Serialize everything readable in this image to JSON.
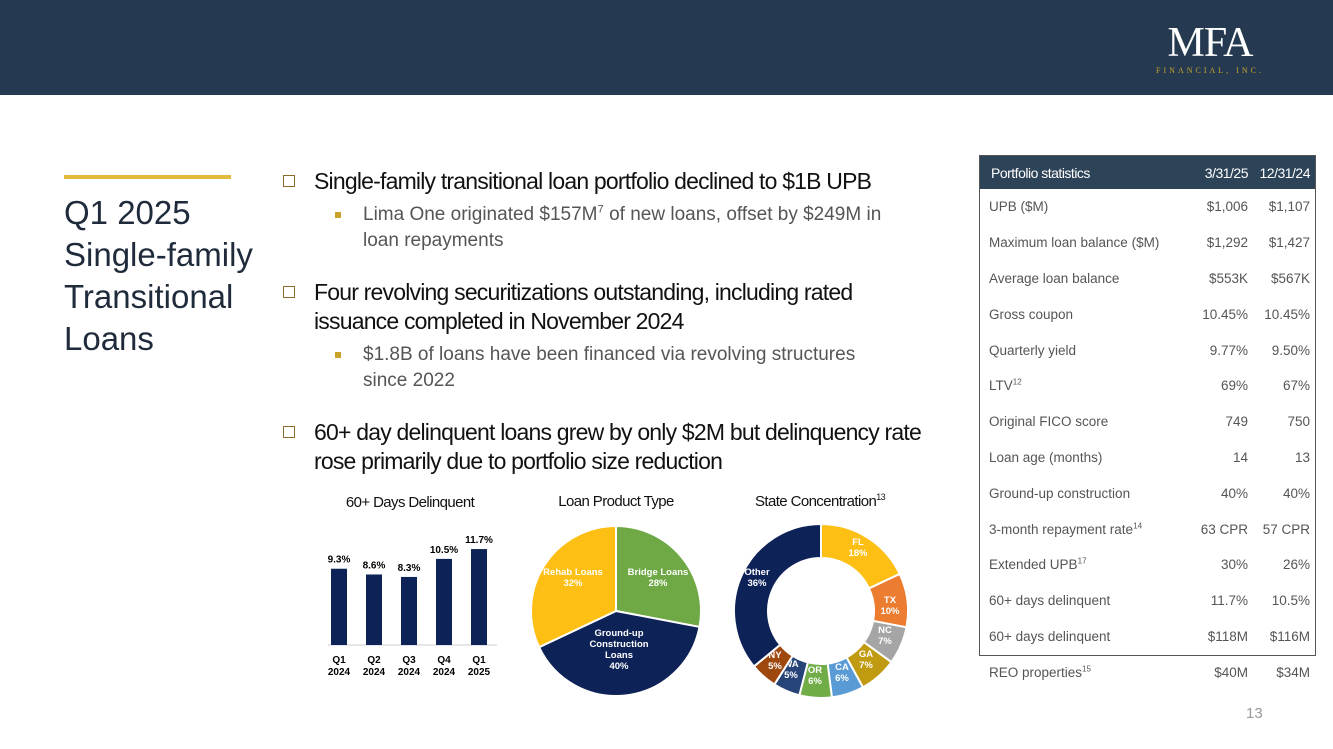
{
  "logo": {
    "name": "MFA",
    "sub": "FINANCIAL, INC."
  },
  "title": "Q1 2025 Single-family Transitional Loans",
  "bullets": [
    {
      "text": "Single-family transitional loan portfolio declined to $1B UPB",
      "subs": [
        {
          "pre": "Lima One originated $157M",
          "sup": "7",
          "post": " of new loans, offset by $249M in loan repayments"
        }
      ]
    },
    {
      "text": "Four revolving securitizations outstanding, including rated issuance completed in November 2024",
      "subs": [
        {
          "pre": "$1.8B of loans have been financed via revolving structures since 2022",
          "sup": "",
          "post": ""
        }
      ]
    },
    {
      "text": "60+ day delinquent loans grew by only $2M but delinquency rate rose primarily due to portfolio size reduction",
      "subs": []
    }
  ],
  "table": {
    "headers": [
      "Portfolio statistics",
      "3/31/25",
      "12/31/24"
    ],
    "rows": [
      {
        "label": "UPB ($M)",
        "sup": "",
        "v1": "$1,006",
        "v2": "$1,107"
      },
      {
        "label": "Maximum loan balance ($M)",
        "sup": "",
        "v1": "$1,292",
        "v2": "$1,427"
      },
      {
        "label": "Average loan balance",
        "sup": "",
        "v1": "$553K",
        "v2": "$567K"
      },
      {
        "label": "Gross coupon",
        "sup": "",
        "v1": "10.45%",
        "v2": "10.45%"
      },
      {
        "label": "Quarterly yield",
        "sup": "",
        "v1": "9.77%",
        "v2": "9.50%"
      },
      {
        "label": "LTV",
        "sup": "12",
        "v1": "69%",
        "v2": "67%"
      },
      {
        "label": "Original FICO score",
        "sup": "",
        "v1": "749",
        "v2": "750"
      },
      {
        "label": "Loan age (months)",
        "sup": "",
        "v1": "14",
        "v2": "13"
      },
      {
        "label": "Ground-up construction",
        "sup": "",
        "v1": "40%",
        "v2": "40%"
      },
      {
        "label": "3-month repayment rate",
        "sup": "14",
        "v1": "63 CPR",
        "v2": "57 CPR"
      },
      {
        "label": "Extended UPB",
        "sup": "17",
        "v1": "30%",
        "v2": "26%"
      },
      {
        "label": "60+ days delinquent",
        "sup": "",
        "v1": "11.7%",
        "v2": "10.5%"
      },
      {
        "label": "60+ days delinquent",
        "sup": "",
        "v1": "$118M",
        "v2": "$116M"
      },
      {
        "label": "REO properties",
        "sup": "15",
        "v1": "$40M",
        "v2": "$34M"
      }
    ]
  },
  "page_number": "13",
  "chart_data": [
    {
      "type": "bar",
      "title": "60+ Days Delinquent",
      "categories": [
        "Q1 2024",
        "Q2 2024",
        "Q3 2024",
        "Q4 2024",
        "Q1 2025"
      ],
      "values": [
        9.3,
        8.6,
        8.3,
        10.5,
        11.7
      ],
      "labels": [
        "9.3%",
        "8.6%",
        "8.3%",
        "10.5%",
        "11.7%"
      ],
      "color": "#0d2257",
      "grid": false
    },
    {
      "type": "pie",
      "title": "Loan Product Type",
      "slices": [
        {
          "name": "Bridge Loans",
          "value": 28,
          "color": "#6ea945"
        },
        {
          "name": "Ground-up Construction Loans",
          "value": 40,
          "color": "#0d2257"
        },
        {
          "name": "Rehab Loans",
          "value": 32,
          "color": "#fdbf13"
        }
      ]
    },
    {
      "type": "pie",
      "donut": true,
      "title": "State Concentration",
      "title_sup": "13",
      "slices": [
        {
          "name": "FL",
          "value": 18,
          "color": "#fdbf13"
        },
        {
          "name": "TX",
          "value": 10,
          "color": "#ec7c30"
        },
        {
          "name": "NC",
          "value": 7,
          "color": "#a5a5a5"
        },
        {
          "name": "GA",
          "value": 7,
          "color": "#c09a10"
        },
        {
          "name": "CA",
          "value": 6,
          "color": "#5b9bd5"
        },
        {
          "name": "OR",
          "value": 6,
          "color": "#70ad47"
        },
        {
          "name": "WA",
          "value": 5,
          "color": "#264478"
        },
        {
          "name": "NY",
          "value": 5,
          "color": "#9e480e"
        },
        {
          "name": "Other",
          "value": 36,
          "color": "#0d2257"
        }
      ]
    }
  ]
}
